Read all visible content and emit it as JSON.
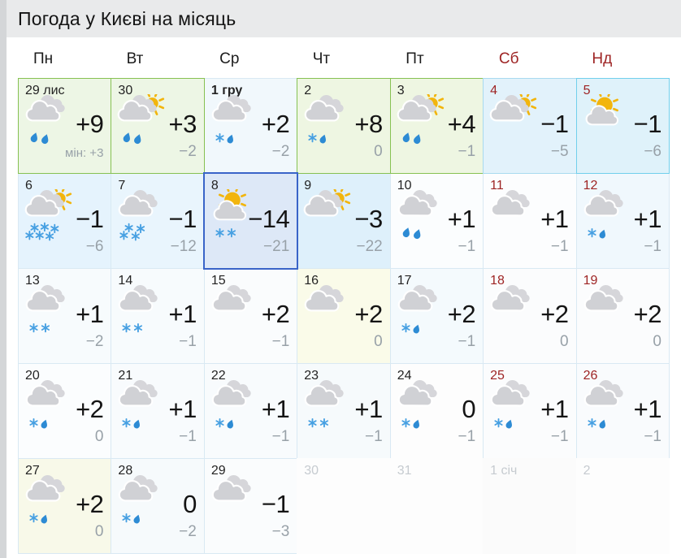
{
  "page": {
    "title": "Погода у Києві на місяць",
    "band_color": "#e9eaeb",
    "selected_border_color": "#3a64c8",
    "warm_border_color": "#86c152",
    "weekend_color": "#9e2424",
    "muted_color": "#c6cbd0"
  },
  "weekdays": [
    {
      "label": "Пн",
      "weekend": false
    },
    {
      "label": "Вт",
      "weekend": false
    },
    {
      "label": "Ср",
      "weekend": false
    },
    {
      "label": "Чт",
      "weekend": false
    },
    {
      "label": "Пт",
      "weekend": false
    },
    {
      "label": "Сб",
      "weekend": true
    },
    {
      "label": "Нд",
      "weekend": true
    }
  ],
  "days": [
    {
      "date": "29 лис",
      "cls": "normal",
      "icon": "cloud",
      "precip": "rain2",
      "high": "+9",
      "low": "мін: +3",
      "low_small": true,
      "bg": "#edf6e5",
      "shadow": "#86c152"
    },
    {
      "date": "30",
      "cls": "normal",
      "icon": "cloudsun",
      "precip": "rain2",
      "high": "+3",
      "low": "−2",
      "bg": "#edf6e5",
      "shadow": "#86c152"
    },
    {
      "date": "1 гру",
      "cls": "bold",
      "icon": "cloud",
      "precip": "snowdrop",
      "high": "+2",
      "low": "−2",
      "bg": "#f1f8fc",
      "shadow": null
    },
    {
      "date": "2",
      "cls": "normal",
      "icon": "cloud",
      "precip": "snowdrop",
      "high": "+8",
      "low": "0",
      "bg": "#eef6e2",
      "shadow": "#86c152"
    },
    {
      "date": "3",
      "cls": "normal",
      "icon": "cloudsun",
      "precip": "rain2",
      "high": "+4",
      "low": "−1",
      "bg": "#eef6e2",
      "shadow": "#86c152"
    },
    {
      "date": "4",
      "cls": "weekend",
      "icon": "cloudsun",
      "precip": "none",
      "high": "−1",
      "low": "−5",
      "bg": "#e2f2fb",
      "shadow": "#a8daef"
    },
    {
      "date": "5",
      "cls": "weekend",
      "icon": "suncloud",
      "precip": "none",
      "high": "−1",
      "low": "−6",
      "bg": "#dff2fa",
      "shadow": "#71cfec"
    },
    {
      "date": "6",
      "cls": "normal",
      "icon": "cloudsun",
      "precip": "snow6",
      "high": "−1",
      "low": "−6",
      "bg": "#e5f3fd",
      "shadow": null
    },
    {
      "date": "7",
      "cls": "normal",
      "icon": "cloud",
      "precip": "snow4",
      "high": "−1",
      "low": "−12",
      "bg": "#e9f5fd",
      "shadow": null
    },
    {
      "date": "8",
      "cls": "normal",
      "icon": "suncloud",
      "precip": "snow2",
      "high": "−14",
      "low": "−21",
      "bg": "#dde8f7",
      "shadow": "#3a64c8",
      "selected": true
    },
    {
      "date": "9",
      "cls": "normal",
      "icon": "cloudsun",
      "precip": "none",
      "high": "−3",
      "low": "−22",
      "bg": "#def0fb",
      "shadow": null
    },
    {
      "date": "10",
      "cls": "normal",
      "icon": "cloud",
      "precip": "rain2",
      "high": "+1",
      "low": "−1",
      "bg": "#fbfdfe",
      "shadow": null
    },
    {
      "date": "11",
      "cls": "weekend",
      "icon": "cloud",
      "precip": "none",
      "high": "+1",
      "low": "−1",
      "bg": "#fcfdfe",
      "shadow": null
    },
    {
      "date": "12",
      "cls": "weekend",
      "icon": "cloud",
      "precip": "snowdrop",
      "high": "+1",
      "low": "−1",
      "bg": "#f0f8fd",
      "shadow": null
    },
    {
      "date": "13",
      "cls": "normal",
      "icon": "cloud",
      "precip": "snow2",
      "high": "+1",
      "low": "−2",
      "bg": "#f7fbfd",
      "shadow": null
    },
    {
      "date": "14",
      "cls": "normal",
      "icon": "cloud",
      "precip": "snow2",
      "high": "+1",
      "low": "−1",
      "bg": "#f7fbfd",
      "shadow": null
    },
    {
      "date": "15",
      "cls": "normal",
      "icon": "cloud",
      "precip": "none",
      "high": "+2",
      "low": "−1",
      "bg": "#fafcfd",
      "shadow": null
    },
    {
      "date": "16",
      "cls": "normal",
      "icon": "cloud",
      "precip": "none",
      "high": "+2",
      "low": "0",
      "bg": "#fafbe9",
      "shadow": null
    },
    {
      "date": "17",
      "cls": "normal",
      "icon": "cloud",
      "precip": "snowdrop",
      "high": "+2",
      "low": "−1",
      "bg": "#f4fafd",
      "shadow": null
    },
    {
      "date": "18",
      "cls": "weekend",
      "icon": "cloud",
      "precip": "none",
      "high": "+2",
      "low": "0",
      "bg": "#fbfcfd",
      "shadow": null
    },
    {
      "date": "19",
      "cls": "weekend",
      "icon": "cloud",
      "precip": "none",
      "high": "+2",
      "low": "0",
      "bg": "#fbfcfd",
      "shadow": null
    },
    {
      "date": "20",
      "cls": "normal",
      "icon": "cloud",
      "precip": "snowdrop",
      "high": "+2",
      "low": "0",
      "bg": "#fbfdfe",
      "shadow": null
    },
    {
      "date": "21",
      "cls": "normal",
      "icon": "cloud",
      "precip": "snowdrop",
      "high": "+1",
      "low": "−1",
      "bg": "#f8fbfd",
      "shadow": null
    },
    {
      "date": "22",
      "cls": "normal",
      "icon": "cloud",
      "precip": "snowdrop",
      "high": "+1",
      "low": "−1",
      "bg": "#f8fbfd",
      "shadow": null
    },
    {
      "date": "23",
      "cls": "normal",
      "icon": "cloud",
      "precip": "snow2",
      "high": "+1",
      "low": "−1",
      "bg": "#f6fafc",
      "shadow": null
    },
    {
      "date": "24",
      "cls": "normal",
      "icon": "cloud",
      "precip": "snowdrop",
      "high": "0",
      "low": "−1",
      "bg": "#fdfdfd",
      "shadow": null
    },
    {
      "date": "25",
      "cls": "weekend",
      "icon": "cloud",
      "precip": "snowdrop",
      "high": "+1",
      "low": "−1",
      "bg": "#fbfcfd",
      "shadow": null
    },
    {
      "date": "26",
      "cls": "weekend",
      "icon": "cloud",
      "precip": "snowdrop",
      "high": "+1",
      "low": "−1",
      "bg": "#f9fbfd",
      "shadow": null
    },
    {
      "date": "27",
      "cls": "normal",
      "icon": "cloud",
      "precip": "snowdrop",
      "high": "+2",
      "low": "0",
      "bg": "#f8f9e9",
      "shadow": null
    },
    {
      "date": "28",
      "cls": "normal",
      "icon": "cloud",
      "precip": "snowdrop",
      "high": "0",
      "low": "−2",
      "bg": "#f6fafc",
      "shadow": null
    },
    {
      "date": "29",
      "cls": "normal",
      "icon": "cloud",
      "precip": "none",
      "high": "−1",
      "low": "−3",
      "bg": "#fafcfd",
      "shadow": null
    },
    {
      "date": "30",
      "cls": "muted",
      "icon": "none",
      "precip": "none",
      "high": "",
      "low": "",
      "bg": "#fdfdfd",
      "shadow": "#fdfdfd"
    },
    {
      "date": "31",
      "cls": "muted",
      "icon": "none",
      "precip": "none",
      "high": "",
      "low": "",
      "bg": "#fdfdfd",
      "shadow": "#fdfdfd"
    },
    {
      "date": "1 січ",
      "cls": "muted",
      "icon": "none",
      "precip": "none",
      "high": "",
      "low": "",
      "bg": "#fbfbfb",
      "shadow": "#fbfbfb"
    },
    {
      "date": "2",
      "cls": "muted",
      "icon": "none",
      "precip": "none",
      "high": "",
      "low": "",
      "bg": "#fdfdfd",
      "shadow": "#fdfdfd"
    }
  ]
}
